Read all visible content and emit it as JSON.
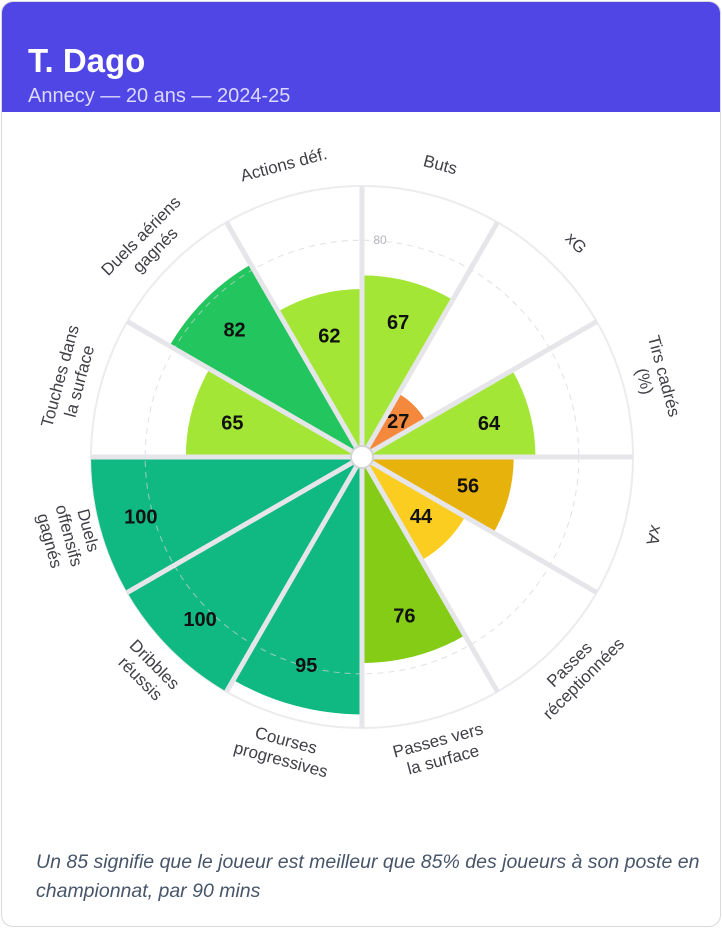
{
  "chart_data": {
    "type": "pizza",
    "title": "T. Dago",
    "subtitle": "Annecy — 20 ans — 2024-25",
    "categories": [
      "Buts",
      "xG",
      "Tirs cadrés (%)",
      "xA",
      "Passes réceptionnées",
      "Passes vers la surface",
      "Courses progressives",
      "Dribbles réussis",
      "Duels offensifs gagnés",
      "Touches dans la surface",
      "Duels aériens gagnés",
      "Actions déf."
    ],
    "values": [
      67,
      27,
      64,
      56,
      44,
      76,
      95,
      100,
      100,
      65,
      82,
      62
    ],
    "colors": [
      "#a3e635",
      "#f4893e",
      "#a3e635",
      "#e8b20c",
      "#fbcd21",
      "#84cc16",
      "#10b981",
      "#10b981",
      "#10b981",
      "#a3e635",
      "#22c55e",
      "#a3e635"
    ],
    "ylim": [
      0,
      100
    ],
    "yticks": [
      80
    ],
    "note": "Un 85 signifie que le joueur est meilleur que 85% des joueurs à son poste en championnat, par 90 mins"
  }
}
